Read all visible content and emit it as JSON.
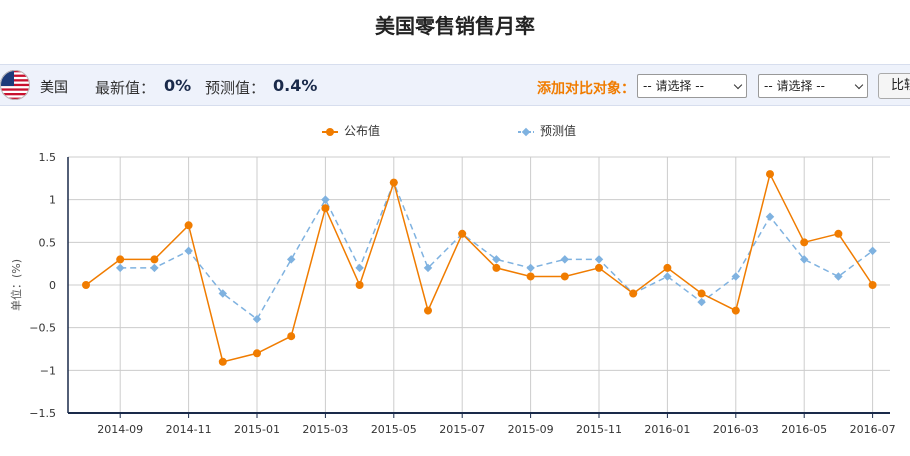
{
  "header": {
    "title": "美国零售销售月率"
  },
  "info_bar": {
    "country": "美国",
    "flag_icon": "us-flag-icon",
    "latest_label": "最新值：",
    "latest_value": "0%",
    "forecast_label": "预测值：",
    "forecast_value": "0.4%",
    "compare_label": "添加对比对象：",
    "select1_value": "-- 请选择 --",
    "select2_value": "-- 请选择 --",
    "compare_button": "比较"
  },
  "colors": {
    "actual": "#f07c00",
    "forecast": "#7fb2e0",
    "grid": "#cccccc",
    "axis": "#1a2a4a"
  },
  "chart_data": {
    "type": "line",
    "title": "美国零售销售月率",
    "ylabel": "单位：(%)",
    "ylim": [
      -1.5,
      1.5
    ],
    "yticks": [
      1.5,
      1,
      0.5,
      0,
      -0.5,
      -1,
      -1.5
    ],
    "ytick_labels": [
      "1.5",
      "1",
      "0.5",
      "0",
      "−0.5",
      "−1",
      "−1.5"
    ],
    "x": [
      "2014-08",
      "2014-09",
      "2014-10",
      "2014-11",
      "2014-12",
      "2015-01",
      "2015-02",
      "2015-03",
      "2015-04",
      "2015-05",
      "2015-06",
      "2015-07",
      "2015-08",
      "2015-09",
      "2015-10",
      "2015-11",
      "2015-12",
      "2016-01",
      "2016-02",
      "2016-03",
      "2016-04",
      "2016-05",
      "2016-06",
      "2016-07"
    ],
    "xtick_labels": [
      "2014-09",
      "2014-11",
      "2015-01",
      "2015-03",
      "2015-05",
      "2015-07",
      "2015-09",
      "2015-11",
      "2016-01",
      "2016-03",
      "2016-05",
      "2016-07"
    ],
    "grid": true,
    "legend_position": "top",
    "series": [
      {
        "name": "公布值",
        "values": [
          0,
          0.3,
          0.3,
          0.7,
          -0.9,
          -0.8,
          -0.6,
          0.9,
          0,
          1.2,
          -0.3,
          0.6,
          0.2,
          0.1,
          0.1,
          0.2,
          -0.1,
          0.2,
          -0.1,
          -0.3,
          1.3,
          0.5,
          0.6,
          0
        ]
      },
      {
        "name": "预测值",
        "values": [
          null,
          0.2,
          0.2,
          0.4,
          -0.1,
          -0.4,
          0.3,
          1,
          0.2,
          1.2,
          0.2,
          0.6,
          0.3,
          0.2,
          0.3,
          0.3,
          -0.1,
          0.1,
          -0.2,
          0.1,
          0.8,
          0.3,
          0.1,
          0.4
        ]
      }
    ]
  }
}
